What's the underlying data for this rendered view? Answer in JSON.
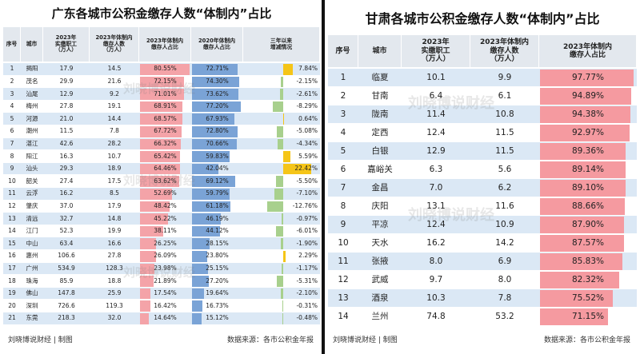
{
  "left": {
    "title": "广东各城市公积金缴存人数“体制内”占比",
    "header": [
      "序号",
      "城市",
      "2023年\n实缴职工\n（万人）",
      "2023年体制内\n缴存人数\n（万人）",
      "2023年体制内\n缴存人占比",
      "2020年体制内\n缴存人占比",
      "三年以来\n增减情况"
    ],
    "rows": [
      [
        "1",
        "揭阳",
        "17.9",
        "14.5",
        "80.55%",
        "72.71%",
        "7.84%"
      ],
      [
        "2",
        "茂名",
        "29.9",
        "21.6",
        "72.15%",
        "74.30%",
        "-2.15%"
      ],
      [
        "3",
        "汕尾",
        "12.9",
        "9.2",
        "71.01%",
        "73.62%",
        "-2.61%"
      ],
      [
        "4",
        "梅州",
        "27.8",
        "19.1",
        "68.91%",
        "77.20%",
        "-8.29%"
      ],
      [
        "5",
        "河源",
        "21.0",
        "14.4",
        "68.57%",
        "67.93%",
        "0.64%"
      ],
      [
        "6",
        "潮州",
        "11.5",
        "7.8",
        "67.72%",
        "72.80%",
        "-5.08%"
      ],
      [
        "7",
        "湛江",
        "42.6",
        "28.2",
        "66.32%",
        "70.66%",
        "-4.34%"
      ],
      [
        "8",
        "阳江",
        "16.3",
        "10.7",
        "65.42%",
        "59.83%",
        "5.59%"
      ],
      [
        "9",
        "汕头",
        "29.3",
        "18.9",
        "64.46%",
        "42.04%",
        "22.42%"
      ],
      [
        "10",
        "韶关",
        "27.4",
        "17.5",
        "63.62%",
        "69.12%",
        "-5.50%"
      ],
      [
        "11",
        "云浮",
        "16.2",
        "8.5",
        "52.69%",
        "59.79%",
        "-7.10%"
      ],
      [
        "12",
        "肇庆",
        "37.0",
        "17.9",
        "48.42%",
        "61.18%",
        "-12.76%"
      ],
      [
        "13",
        "清远",
        "32.7",
        "14.8",
        "45.22%",
        "46.19%",
        "-0.97%"
      ],
      [
        "14",
        "江门",
        "52.3",
        "19.9",
        "38.11%",
        "44.12%",
        "-6.01%"
      ],
      [
        "15",
        "中山",
        "63.4",
        "16.6",
        "26.25%",
        "28.15%",
        "-1.90%"
      ],
      [
        "16",
        "惠州",
        "106.6",
        "27.8",
        "26.09%",
        "23.80%",
        "2.29%"
      ],
      [
        "17",
        "广州",
        "534.9",
        "128.3",
        "23.98%",
        "25.15%",
        "-1.17%"
      ],
      [
        "18",
        "珠海",
        "85.9",
        "18.8",
        "21.89%",
        "27.20%",
        "-5.31%"
      ],
      [
        "19",
        "佛山",
        "147.8",
        "25.9",
        "17.54%",
        "19.64%",
        "-2.10%"
      ],
      [
        "20",
        "深圳",
        "726.6",
        "119.3",
        "16.42%",
        "16.73%",
        "-0.31%"
      ],
      [
        "21",
        "东莞",
        "218.3",
        "32.0",
        "14.64%",
        "15.12%",
        "-0.48%"
      ]
    ],
    "footer": {
      "credit": "刘晓博说财经 | 制图",
      "source": "数据来源：各市公积金年报"
    },
    "watermark": "刘晓博说财经"
  },
  "right": {
    "title": "甘肃各城市公积金缴存人数“体制内”占比",
    "header": [
      "序号",
      "城市",
      "2023年\n实缴职工\n（万人）",
      "2023年体制内\n缴存人数\n（万人）",
      "2023年体制内\n缴存人占比"
    ],
    "rows": [
      [
        "1",
        "临夏",
        "10.1",
        "9.9",
        "97.77%"
      ],
      [
        "2",
        "甘南",
        "6.4",
        "6.1",
        "94.89%"
      ],
      [
        "3",
        "陇南",
        "11.4",
        "10.8",
        "94.38%"
      ],
      [
        "4",
        "定西",
        "12.4",
        "11.5",
        "92.97%"
      ],
      [
        "5",
        "白银",
        "12.9",
        "11.5",
        "89.36%"
      ],
      [
        "6",
        "嘉峪关",
        "6.3",
        "5.6",
        "89.14%"
      ],
      [
        "7",
        "金昌",
        "7.0",
        "6.2",
        "89.10%"
      ],
      [
        "8",
        "庆阳",
        "13.1",
        "11.6",
        "88.66%"
      ],
      [
        "9",
        "平凉",
        "12.4",
        "10.9",
        "87.90%"
      ],
      [
        "10",
        "天水",
        "16.2",
        "14.2",
        "87.57%"
      ],
      [
        "11",
        "张掖",
        "8.0",
        "6.9",
        "85.83%"
      ],
      [
        "12",
        "武威",
        "9.7",
        "8.0",
        "82.32%"
      ],
      [
        "13",
        "酒泉",
        "10.3",
        "7.8",
        "75.52%"
      ],
      [
        "14",
        "兰州",
        "74.8",
        "53.2",
        "71.15%"
      ]
    ],
    "footer": {
      "credit": "刘晓博说财经 | 制图",
      "source": "数据来源：各市公积金年报"
    },
    "watermark": "刘晓博说财经"
  }
}
